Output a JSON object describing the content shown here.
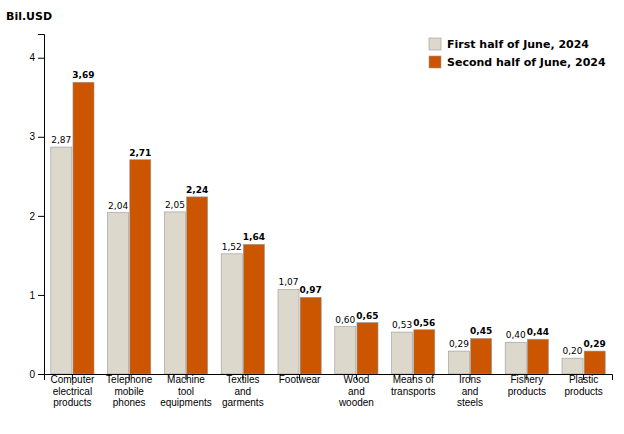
{
  "chart_data": {
    "type": "bar",
    "ylabel": "Bil.USD",
    "categories": [
      "Computer\nelectrical\nproducts",
      "Telephone\nmobile\nphones",
      "Machine\ntool\nequipments",
      "Textiles\nand\ngarments",
      "Footwear",
      "Wood\nand\nwooden",
      "Means of\ntransports",
      "Irons\nand\nsteels",
      "Fishery\nproducts",
      "Plastic\nproducts"
    ],
    "series": [
      {
        "name": "First half of June, 2024",
        "color": "#DDD8CC",
        "values": [
          2.87,
          2.04,
          2.05,
          1.52,
          1.07,
          0.6,
          0.53,
          0.29,
          0.4,
          0.2
        ],
        "value_labels": [
          "2,87",
          "2,04",
          "2,05",
          "1,52",
          "1,07",
          "0,60",
          "0,53",
          "0,29",
          "0,40",
          "0,20"
        ]
      },
      {
        "name": "Second half of June, 2024",
        "color": "#CC5500",
        "values": [
          3.69,
          2.71,
          2.24,
          1.64,
          0.97,
          0.65,
          0.56,
          0.45,
          0.44,
          0.29
        ],
        "value_labels": [
          "3,69",
          "2,71",
          "2,24",
          "1,64",
          "0,97",
          "0,65",
          "0,56",
          "0,45",
          "0,44",
          "0,29"
        ]
      }
    ],
    "ylim": [
      0,
      4.3
    ],
    "yticks": [
      0,
      1,
      2,
      3,
      4
    ],
    "grid": false,
    "legend": "upper right",
    "data_labels": true
  }
}
